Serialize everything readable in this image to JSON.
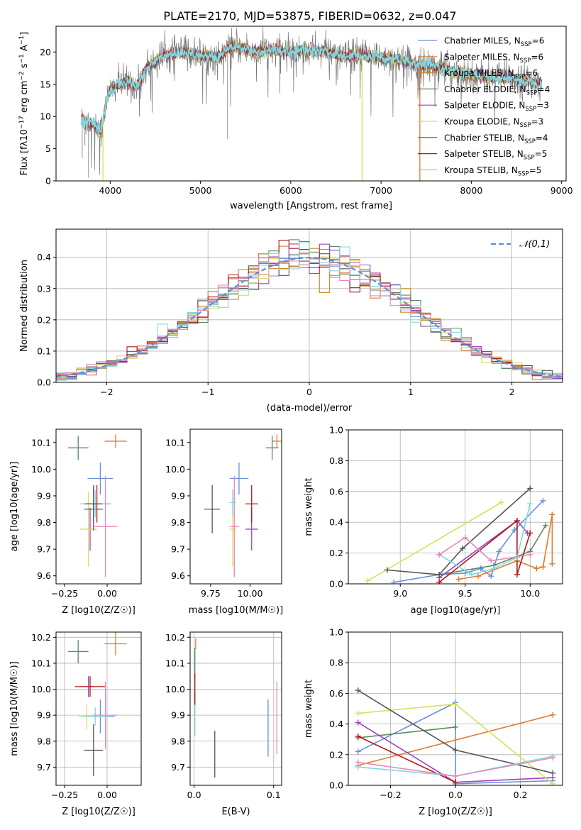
{
  "figure_title": "PLATE=2170, MJD=53875, FIBERID=0632, z=0.047",
  "models": [
    {
      "name": "Chabrier MILES",
      "nssp": "6",
      "color": "#6a8fd8"
    },
    {
      "name": "Salpeter MILES",
      "nssp": "6",
      "color": "#e07a30"
    },
    {
      "name": "Kroupa MILES",
      "nssp": "6",
      "color": "#c98a1e"
    },
    {
      "name": "Chabrier ELODIE",
      "nssp": "4",
      "color": "#5a8a5e"
    },
    {
      "name": "Salpeter ELODIE",
      "nssp": "3",
      "color": "#a040c8"
    },
    {
      "name": "Kroupa ELODIE",
      "nssp": "3",
      "color": "#d6e05a"
    },
    {
      "name": "Chabrier STELIB",
      "nssp": "4",
      "color": "#555555"
    },
    {
      "name": "Salpeter STELIB",
      "nssp": "5",
      "color": "#b01818"
    },
    {
      "name": "Kroupa STELIB",
      "nssp": "5",
      "color": "#80d8e0"
    }
  ],
  "extra_colors": {
    "pink": "#e888b8"
  },
  "chart_data": [
    {
      "id": "spectrum",
      "type": "line",
      "xlabel": "wavelength [Angstrom, rest frame]",
      "ylabel": "Flux [f_λ 10^-17 erg cm^-2 s^-1 A^-1]",
      "xlim": [
        3400,
        9050
      ],
      "ylim": [
        0,
        24
      ],
      "xticks": [
        4000,
        5000,
        6000,
        7000,
        8000,
        9000
      ],
      "yticks": [
        0,
        5,
        10,
        15,
        20
      ],
      "x_range_data": [
        3680,
        8780
      ],
      "continuum": [
        [
          3680,
          9.5
        ],
        [
          3800,
          9.0
        ],
        [
          3900,
          7.5
        ],
        [
          3950,
          12
        ],
        [
          4000,
          14
        ],
        [
          4100,
          15
        ],
        [
          4200,
          15.5
        ],
        [
          4300,
          14.5
        ],
        [
          4400,
          17.5
        ],
        [
          4500,
          18.5
        ],
        [
          4600,
          19.5
        ],
        [
          4700,
          19.8
        ],
        [
          4800,
          20
        ],
        [
          4900,
          19.8
        ],
        [
          5000,
          19.5
        ],
        [
          5100,
          19.2
        ],
        [
          5200,
          19.0
        ],
        [
          5300,
          20.5
        ],
        [
          5400,
          20.8
        ],
        [
          5500,
          20.5
        ],
        [
          5600,
          20.0
        ],
        [
          5800,
          20.2
        ],
        [
          6000,
          20.0
        ],
        [
          6200,
          20.3
        ],
        [
          6400,
          20.0
        ],
        [
          6600,
          19.3
        ],
        [
          6800,
          19.5
        ],
        [
          7000,
          19.2
        ],
        [
          7200,
          18.8
        ],
        [
          7400,
          18.0
        ],
        [
          7600,
          17.8
        ],
        [
          7800,
          17.0
        ],
        [
          8000,
          16.5
        ],
        [
          8200,
          16.0
        ],
        [
          8400,
          16.0
        ],
        [
          8600,
          15.5
        ],
        [
          8780,
          15.0
        ]
      ],
      "dropout_lines": [
        {
          "x": 3920,
          "color_model": 5
        },
        {
          "x": 6790,
          "color_model": 5
        },
        {
          "x": 7430,
          "color_model": 1
        }
      ]
    },
    {
      "id": "residual_hist",
      "type": "histogram",
      "xlabel": "(data-model)/error",
      "ylabel": "Normed distribution",
      "xlim": [
        -2.5,
        2.5
      ],
      "ylim": [
        0,
        0.49
      ],
      "xticks": [
        -2,
        -1,
        0,
        1,
        2
      ],
      "yticks": [
        0.0,
        0.1,
        0.2,
        0.3,
        0.4
      ],
      "bin_width": 0.1,
      "reference_curve": {
        "label": "𝒩(0,1)",
        "type": "normal",
        "mean": 0,
        "sigma": 1
      }
    },
    {
      "id": "age_vs_Z",
      "type": "errorbar",
      "xlabel": "Z [log10(Z/Z☉)]",
      "ylabel": "age [log10(age/yr)]",
      "xlim": [
        -0.3,
        0.2
      ],
      "ylim": [
        9.57,
        10.15
      ],
      "xticks": [
        -0.25,
        0.0
      ],
      "yticks": [
        9.6,
        9.7,
        9.8,
        9.9,
        10.0,
        10.1
      ],
      "points": [
        {
          "model": 0,
          "x": -0.04,
          "y": 9.965,
          "xerr": 0.075,
          "yerr": 0.06
        },
        {
          "model": 1,
          "x": 0.05,
          "y": 10.105,
          "xerr": 0.065,
          "yerr": 0.025
        },
        {
          "model": 3,
          "x": -0.17,
          "y": 10.08,
          "xerr": 0.06,
          "yerr": 0.045
        },
        {
          "model": 4,
          "x": -0.1,
          "y": 9.775,
          "xerr": 0.02,
          "yerr": 0.08
        },
        {
          "model": 5,
          "x": -0.11,
          "y": 9.775,
          "xerr": 0.05,
          "yerr": 0.14
        },
        {
          "model": 6,
          "x": -0.08,
          "y": 9.85,
          "xerr": 0.055,
          "yerr": 0.08
        },
        {
          "model": 7,
          "x": -0.06,
          "y": 9.87,
          "xerr": 0.08,
          "yerr": 0.07
        },
        {
          "model": 8,
          "x": -0.07,
          "y": 9.87,
          "xerr": 0.09,
          "yerr": 0.05
        },
        {
          "model": 6,
          "x": -0.08,
          "y": 9.87,
          "xerr": 0.05,
          "yerr": 0.07
        },
        {
          "model": "pink",
          "x": -0.01,
          "y": 9.785,
          "xerr": 0.07,
          "yerr": 0.19
        }
      ]
    },
    {
      "id": "age_vs_mass",
      "type": "errorbar",
      "xlabel": "mass [log10(M/M☉)]",
      "ylabel": "",
      "xlim": [
        9.62,
        10.2
      ],
      "ylim": [
        9.57,
        10.15
      ],
      "xticks": [
        9.75,
        10.0
      ],
      "yticks": [
        9.6,
        9.7,
        9.8,
        9.9,
        10.0,
        10.1
      ],
      "points": [
        {
          "model": 0,
          "x": 9.93,
          "y": 9.965,
          "xerr": 0.06,
          "yerr": 0.06
        },
        {
          "model": 1,
          "x": 10.17,
          "y": 10.105,
          "xerr": 0.03,
          "yerr": 0.025
        },
        {
          "model": 3,
          "x": 10.14,
          "y": 10.08,
          "xerr": 0.04,
          "yerr": 0.045
        },
        {
          "model": 4,
          "x": 10.01,
          "y": 9.775,
          "xerr": 0.04,
          "yerr": 0.08
        },
        {
          "model": 5,
          "x": 9.89,
          "y": 9.775,
          "xerr": 0.02,
          "yerr": 0.14
        },
        {
          "model": 6,
          "x": 9.76,
          "y": 9.85,
          "xerr": 0.05,
          "yerr": 0.09
        },
        {
          "model": 7,
          "x": 10.01,
          "y": 9.87,
          "xerr": 0.04,
          "yerr": 0.07
        },
        {
          "model": 8,
          "x": 9.89,
          "y": 9.875,
          "xerr": 0.02,
          "yerr": 0.05
        },
        {
          "model": "pink",
          "x": 9.9,
          "y": 9.785,
          "xerr": 0.03,
          "yerr": 0.19
        }
      ]
    },
    {
      "id": "weight_vs_age",
      "type": "line",
      "xlabel": "age [log10(age/yr)]",
      "ylabel": "mass weight",
      "xlim": [
        8.6,
        10.25
      ],
      "ylim": [
        0,
        1
      ],
      "xticks": [
        9.0,
        9.5,
        10.0
      ],
      "yticks": [
        0.0,
        0.2,
        0.4,
        0.6,
        0.8,
        1.0
      ],
      "series": [
        {
          "model": 0,
          "points": [
            [
              8.95,
              0.01
            ],
            [
              9.3,
              0.06
            ],
            [
              9.5,
              0.07
            ],
            [
              9.62,
              0.1
            ],
            [
              9.7,
              0.05
            ],
            [
              9.76,
              0.21
            ],
            [
              9.88,
              0.35
            ],
            [
              10.1,
              0.54
            ]
          ]
        },
        {
          "model": 1,
          "points": [
            [
              9.45,
              0.03
            ],
            [
              9.6,
              0.05
            ],
            [
              9.9,
              0.15
            ],
            [
              10.05,
              0.1
            ],
            [
              10.1,
              0.11
            ],
            [
              10.17,
              0.45
            ],
            [
              10.17,
              0.13
            ]
          ]
        },
        {
          "model": 3,
          "points": [
            [
              9.3,
              0.06
            ],
            [
              9.72,
              0.12
            ],
            [
              10.0,
              0.21
            ],
            [
              10.12,
              0.38
            ]
          ]
        },
        {
          "model": 4,
          "points": [
            [
              9.3,
              0.04
            ],
            [
              9.9,
              0.41
            ],
            [
              9.98,
              0.33
            ]
          ]
        },
        {
          "model": 5,
          "points": [
            [
              8.75,
              0.02
            ],
            [
              9.78,
              0.53
            ]
          ]
        },
        {
          "model": 6,
          "points": [
            [
              8.9,
              0.09
            ],
            [
              9.3,
              0.06
            ],
            [
              9.48,
              0.23
            ],
            [
              10.0,
              0.62
            ]
          ]
        },
        {
          "model": 7,
          "points": [
            [
              9.3,
              0.01
            ],
            [
              9.9,
              0.41
            ],
            [
              9.9,
              0.06
            ],
            [
              10.0,
              0.33
            ]
          ]
        },
        {
          "model": 8,
          "points": [
            [
              9.3,
              0.19
            ],
            [
              9.55,
              0.06
            ],
            [
              9.72,
              0.1
            ],
            [
              9.9,
              0.17
            ],
            [
              10.0,
              0.52
            ]
          ]
        },
        {
          "model": "pink",
          "points": [
            [
              9.3,
              0.19
            ],
            [
              9.5,
              0.3
            ],
            [
              9.7,
              0.15
            ],
            [
              10.0,
              0.19
            ]
          ]
        }
      ]
    },
    {
      "id": "mass_vs_Z",
      "type": "errorbar",
      "xlabel": "Z [log10(Z/Z☉)]",
      "ylabel": "mass [log10(M/M☉)]",
      "xlim": [
        -0.3,
        0.2
      ],
      "ylim": [
        9.63,
        10.22
      ],
      "xticks": [
        -0.25,
        0.0
      ],
      "yticks": [
        9.7,
        9.8,
        9.9,
        10.0,
        10.1,
        10.2
      ],
      "points": [
        {
          "model": 0,
          "x": -0.04,
          "y": 9.895,
          "xerr": 0.085,
          "yerr": 0.065
        },
        {
          "model": 1,
          "x": 0.05,
          "y": 10.175,
          "xerr": 0.065,
          "yerr": 0.045
        },
        {
          "model": 3,
          "x": -0.17,
          "y": 10.145,
          "xerr": 0.06,
          "yerr": 0.045
        },
        {
          "model": 4,
          "x": -0.11,
          "y": 10.01,
          "xerr": 0.035,
          "yerr": 0.04
        },
        {
          "model": 5,
          "x": -0.12,
          "y": 9.895,
          "xerr": 0.05,
          "yerr": 0.05
        },
        {
          "model": 6,
          "x": -0.08,
          "y": 9.765,
          "xerr": 0.055,
          "yerr": 0.1
        },
        {
          "model": 7,
          "x": -0.1,
          "y": 10.01,
          "xerr": 0.09,
          "yerr": 0.04
        },
        {
          "model": 8,
          "x": -0.07,
          "y": 9.895,
          "xerr": 0.08,
          "yerr": 0.035
        },
        {
          "model": "pink",
          "x": -0.01,
          "y": 9.9,
          "xerr": 0.07,
          "yerr": 0.13
        }
      ]
    },
    {
      "id": "mass_vs_ebv",
      "type": "errorbar",
      "xlabel": "E(B-V)",
      "ylabel": "",
      "xlim": [
        -0.005,
        0.11
      ],
      "ylim": [
        9.63,
        10.22
      ],
      "xticks": [
        0.0,
        0.1
      ],
      "yticks": [
        9.7,
        9.8,
        9.9,
        10.0,
        10.1,
        10.2
      ],
      "points": [
        {
          "model": 0,
          "x": 0.093,
          "y": 9.85,
          "xerr": 0,
          "yerr": 0.11
        },
        {
          "model": 1,
          "x": 0.002,
          "y": 10.175,
          "xerr": 0,
          "yerr": 0.02
        },
        {
          "model": 3,
          "x": 0.001,
          "y": 10.1,
          "xerr": 0,
          "yerr": 0.06
        },
        {
          "model": 5,
          "x": 0.001,
          "y": 9.95,
          "xerr": 0,
          "yerr": 0.05
        },
        {
          "model": 6,
          "x": 0.026,
          "y": 9.75,
          "xerr": 0,
          "yerr": 0.09
        },
        {
          "model": 7,
          "x": 0.001,
          "y": 10.0,
          "xerr": 0,
          "yerr": 0.06
        },
        {
          "model": 8,
          "x": 0.001,
          "y": 9.88,
          "xerr": 0,
          "yerr": 0.06
        },
        {
          "model": "pink",
          "x": 0.104,
          "y": 9.89,
          "xerr": 0,
          "yerr": 0.14
        }
      ]
    },
    {
      "id": "weight_vs_Z",
      "type": "line",
      "xlabel": "Z [log10(Z/Z☉)]",
      "ylabel": "mass weight",
      "xlim": [
        -0.33,
        0.33
      ],
      "ylim": [
        0,
        1
      ],
      "xticks": [
        -0.2,
        0.0,
        0.2
      ],
      "yticks": [
        0.0,
        0.2,
        0.4,
        0.6,
        0.8,
        1.0
      ],
      "series": [
        {
          "model": 0,
          "points": [
            [
              -0.3,
              0.22
            ],
            [
              0.0,
              0.54
            ],
            [
              0.0,
              0.01
            ],
            [
              0.3,
              0.03
            ]
          ]
        },
        {
          "model": 1,
          "points": [
            [
              -0.3,
              0.13
            ],
            [
              0.3,
              0.46
            ]
          ]
        },
        {
          "model": 3,
          "points": [
            [
              -0.3,
              0.31
            ],
            [
              0.0,
              0.38
            ]
          ]
        },
        {
          "model": 4,
          "points": [
            [
              -0.3,
              0.41
            ],
            [
              0.0,
              0.02
            ],
            [
              0.3,
              0.05
            ]
          ]
        },
        {
          "model": 5,
          "points": [
            [
              -0.3,
              0.47
            ],
            [
              0.0,
              0.53
            ],
            [
              0.3,
              0.01
            ]
          ]
        },
        {
          "model": 6,
          "points": [
            [
              -0.3,
              0.62
            ],
            [
              0.0,
              0.23
            ],
            [
              0.3,
              0.08
            ]
          ]
        },
        {
          "model": 7,
          "points": [
            [
              -0.3,
              0.32
            ],
            [
              0.0,
              0.02
            ]
          ]
        },
        {
          "model": 8,
          "points": [
            [
              -0.3,
              0.12
            ],
            [
              0.0,
              0.06
            ],
            [
              0.3,
              0.19
            ]
          ]
        },
        {
          "model": "pink",
          "points": [
            [
              -0.3,
              0.15
            ],
            [
              0.0,
              0.06
            ],
            [
              0.3,
              0.18
            ]
          ]
        }
      ]
    }
  ]
}
